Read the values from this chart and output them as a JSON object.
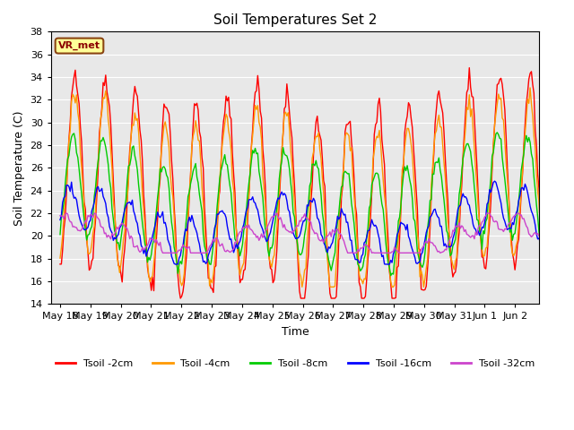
{
  "title": "Soil Temperatures Set 2",
  "xlabel": "Time",
  "ylabel": "Soil Temperature (C)",
  "ylim": [
    14,
    38
  ],
  "yticks": [
    14,
    16,
    18,
    20,
    22,
    24,
    26,
    28,
    30,
    32,
    34,
    36,
    38
  ],
  "background_color": "#e8e8e8",
  "series_colors": {
    "Tsoil -2cm": "#ff0000",
    "Tsoil -4cm": "#ff9900",
    "Tsoil -8cm": "#00cc00",
    "Tsoil -16cm": "#0000ff",
    "Tsoil -32cm": "#cc44cc"
  },
  "legend_label": "VR_met",
  "legend_bg": "#ffff99",
  "legend_border": "#8b4513",
  "xtick_labels": [
    "May 18",
    "May 19",
    "May 20",
    "May 21",
    "May 22",
    "May 23",
    "May 24",
    "May 25",
    "May 26",
    "May 27",
    "May 28",
    "May 29",
    "May 30",
    "May 31",
    "Jun 1",
    "Jun 2"
  ],
  "n_points": 384
}
